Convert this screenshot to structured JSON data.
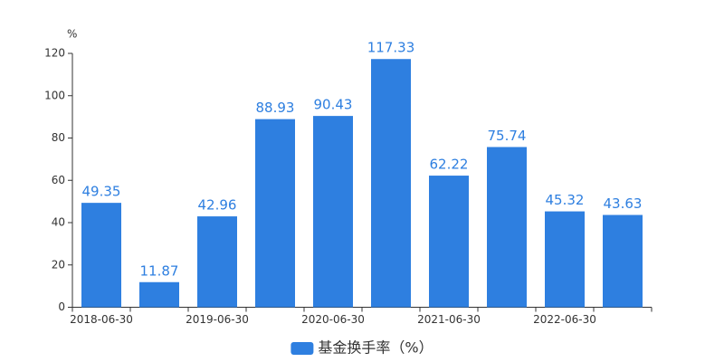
{
  "chart_data": {
    "type": "bar",
    "y_unit": "%",
    "categories": [
      "2018-06-30",
      null,
      "2019-06-30",
      null,
      "2020-06-30",
      null,
      "2021-06-30",
      null,
      "2022-06-30",
      null
    ],
    "series": [
      {
        "name": "基金换手率（%）",
        "color": "#2e7fe0",
        "values": [
          49.35,
          11.87,
          42.96,
          88.93,
          90.43,
          117.33,
          62.22,
          75.74,
          45.32,
          43.63
        ]
      }
    ],
    "data_labels": true,
    "ylim": [
      0,
      120
    ],
    "yticks": [
      0,
      20,
      40,
      60,
      80,
      100,
      120
    ],
    "grid": false,
    "legend": "bottom"
  }
}
